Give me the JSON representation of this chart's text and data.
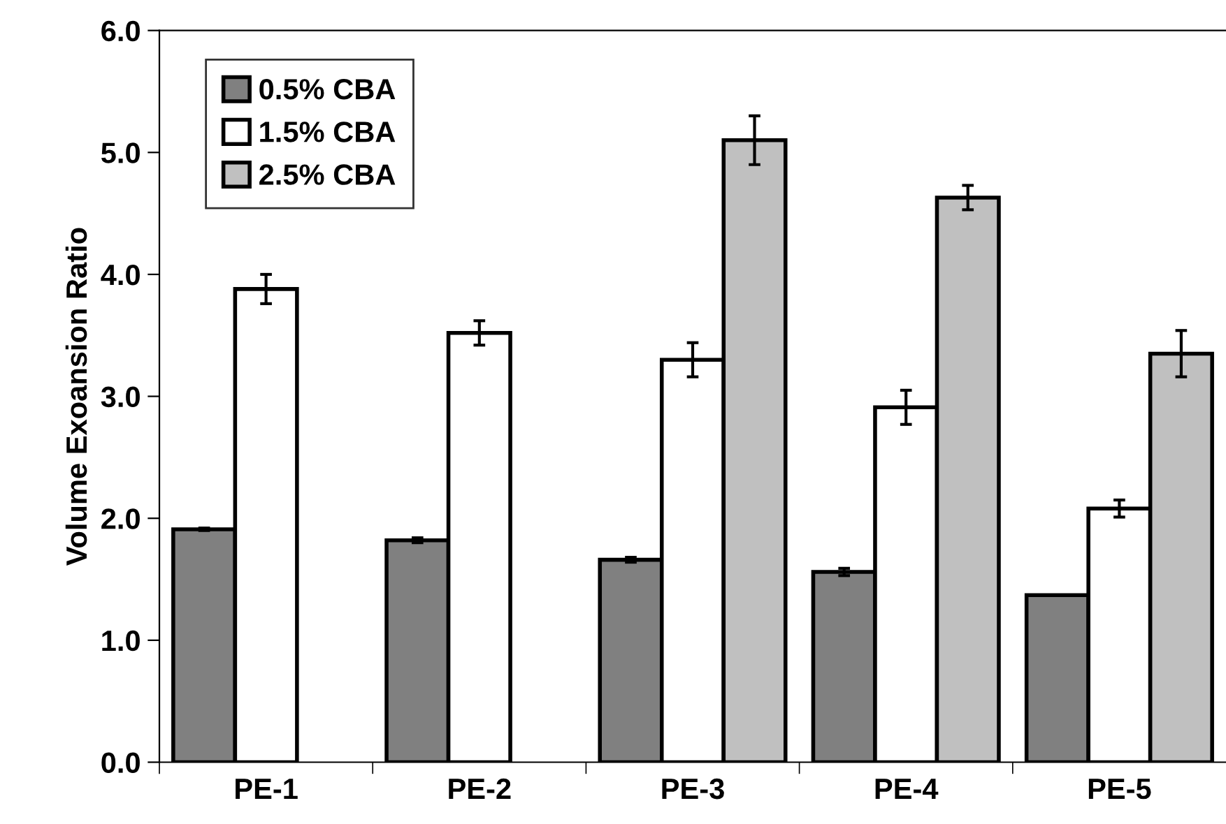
{
  "chart_data": {
    "type": "bar",
    "ylabel": "Volume Exoansion Ratio",
    "categories": [
      "PE-1",
      "PE-2",
      "PE-3",
      "PE-4",
      "PE-5"
    ],
    "series": [
      {
        "name": "0.5% CBA",
        "color": "#808080",
        "values": [
          1.91,
          1.82,
          1.66,
          1.56,
          1.37
        ],
        "errors": [
          0.01,
          0.02,
          0.02,
          0.03,
          null
        ]
      },
      {
        "name": "1.5% CBA",
        "color": "#ffffff",
        "values": [
          3.88,
          3.52,
          3.3,
          2.91,
          2.08
        ],
        "errors": [
          0.12,
          0.1,
          0.14,
          0.14,
          0.07
        ]
      },
      {
        "name": "2.5% CBA",
        "color": "#c0c0c0",
        "values": [
          null,
          null,
          5.1,
          4.63,
          3.35
        ],
        "errors": [
          null,
          null,
          0.2,
          0.1,
          0.19
        ]
      }
    ],
    "ylim": [
      0,
      6
    ],
    "yticks": [
      {
        "value": 0,
        "label": "0.0"
      },
      {
        "value": 1,
        "label": "1.0"
      },
      {
        "value": 2,
        "label": "2.0"
      },
      {
        "value": 3,
        "label": "3.0"
      },
      {
        "value": 4,
        "label": "4.0"
      },
      {
        "value": 5,
        "label": "5.0"
      },
      {
        "value": 6,
        "label": "6.0"
      }
    ],
    "grid": false,
    "legend": "top left"
  }
}
